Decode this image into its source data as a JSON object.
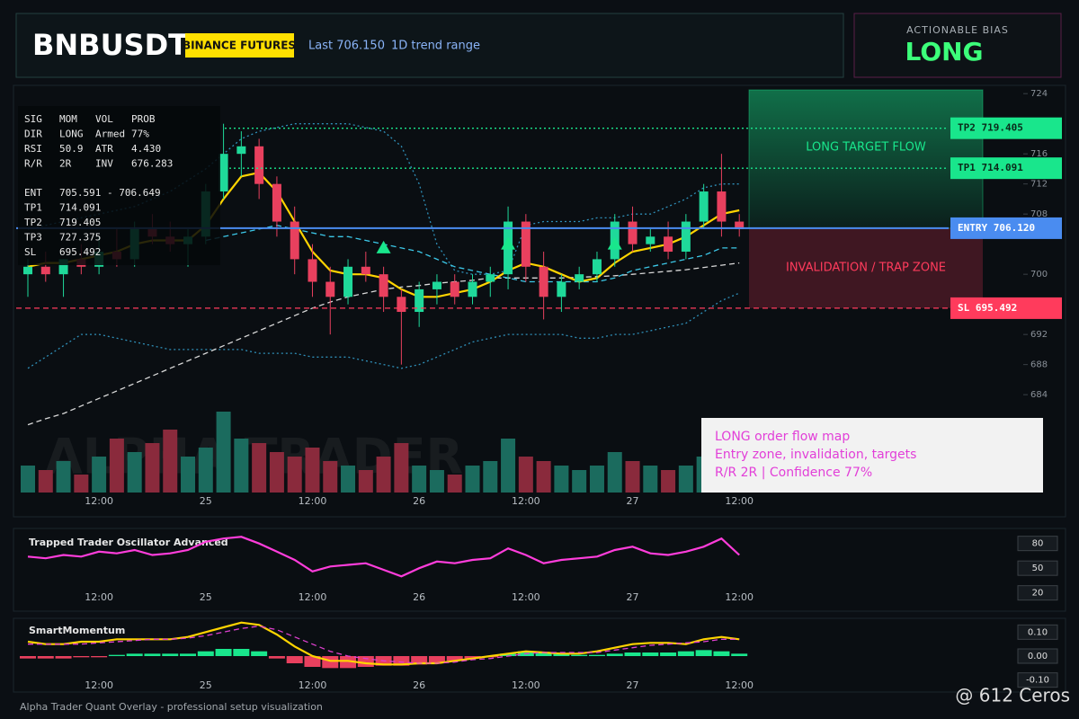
{
  "header": {
    "symbol": "BNBUSDT",
    "exchange": "BINANCE FUTURES",
    "last": "Last 706.150",
    "range": "1D trend range"
  },
  "bias": {
    "title": "ACTIONABLE BIAS",
    "value": "LONG"
  },
  "info_table": {
    "rows": [
      [
        "SIG",
        "MOM",
        "VOL",
        "PROB"
      ],
      [
        "DIR",
        "LONG",
        "Armed",
        "77%"
      ],
      [
        "RSI",
        "50.9",
        "ATR",
        "4.430"
      ],
      [
        "R/R",
        "2R",
        "INV",
        "676.283"
      ],
      [
        "ENT",
        "705.591 - 706.649"
      ],
      [
        "TP1",
        "714.091"
      ],
      [
        "TP2",
        "719.405"
      ],
      [
        "TP3",
        "727.375"
      ],
      [
        "SL",
        "695.492"
      ]
    ]
  },
  "annotation": {
    "lines": [
      "LONG order flow map",
      "Entry zone, invalidation, targets",
      "R/R 2R | Confidence 77%"
    ]
  },
  "watermark": "ALPHA TRADER",
  "footer": "Alpha Trader Quant Overlay - professional setup visualization",
  "credit": "@ 612 Ceros",
  "chart_data": [
    {
      "type": "candlestick",
      "categories": [
        null,
        null,
        null,
        null,
        "12:00",
        null,
        null,
        null,
        null,
        null,
        "25",
        null,
        null,
        null,
        null,
        null,
        "12:00",
        null,
        null,
        null,
        null,
        null,
        "26",
        null,
        null,
        null,
        null,
        null,
        "12:00",
        null,
        null,
        null,
        null,
        null,
        "27",
        null,
        null,
        null,
        null,
        null,
        "12:00"
      ],
      "open": [
        700,
        701,
        700,
        702,
        701,
        703,
        702,
        706,
        705,
        704,
        705,
        711,
        716,
        717,
        712,
        707,
        702,
        699,
        697,
        701,
        700,
        697,
        695,
        698,
        699,
        697,
        699,
        700,
        707,
        701,
        697,
        699,
        700,
        702,
        707,
        704,
        705,
        703,
        707,
        711,
        707
      ],
      "high": [
        702,
        703,
        702,
        704,
        705,
        706,
        707,
        708,
        707,
        706,
        712,
        720,
        719,
        718,
        713,
        709,
        704,
        701,
        702,
        703,
        701,
        698,
        699,
        700,
        700,
        700,
        701,
        709,
        708,
        703,
        700,
        701,
        703,
        708,
        709,
        706,
        707,
        708,
        712,
        716,
        708
      ],
      "low": [
        697,
        699,
        697,
        700,
        700,
        701,
        701,
        704,
        703,
        701,
        704,
        710,
        713,
        710,
        705,
        700,
        697,
        692,
        696,
        699,
        695,
        688,
        693,
        696,
        696,
        696,
        697,
        698,
        699,
        694,
        695,
        698,
        699,
        701,
        703,
        703,
        702,
        702,
        706,
        705,
        705
      ],
      "close": [
        701,
        700,
        702,
        701,
        703,
        702,
        706,
        705,
        704,
        705,
        711,
        716,
        717,
        712,
        707,
        702,
        699,
        697,
        701,
        700,
        697,
        695,
        698,
        699,
        697,
        699,
        700,
        707,
        701,
        697,
        699,
        700,
        702,
        707,
        704,
        705,
        703,
        707,
        711,
        707,
        706
      ],
      "volume": [
        30,
        25,
        35,
        20,
        40,
        60,
        45,
        55,
        70,
        40,
        50,
        90,
        60,
        55,
        45,
        40,
        50,
        35,
        30,
        25,
        40,
        55,
        30,
        25,
        20,
        30,
        35,
        60,
        40,
        35,
        30,
        25,
        30,
        45,
        35,
        30,
        25,
        30,
        40,
        35,
        20
      ],
      "up_color": "#1fd99a",
      "down_color": "#e8405e",
      "volume_up_color": "#1b6b5e",
      "volume_down_color": "#8a2a3c",
      "ylim": [
        671,
        724.5
      ],
      "yticks": [
        684,
        688,
        692,
        700,
        708,
        712,
        716,
        724
      ],
      "series": [
        {
          "color": "#2f8fb8",
          "style": "dotted",
          "values": [
            706,
            706.5,
            707,
            707.5,
            708,
            708.5,
            709,
            710,
            711,
            712.5,
            714,
            716,
            718,
            719,
            719.5,
            720,
            720,
            720,
            720,
            719.5,
            719,
            717,
            712,
            704,
            700.5,
            700,
            700,
            700.5,
            706.5,
            707,
            707,
            707,
            707.5,
            707.5,
            708,
            708,
            709,
            710,
            711.5,
            712,
            712
          ]
        },
        {
          "color": "#2f8fb8",
          "style": "dotted",
          "values": [
            687.5,
            689,
            690.5,
            692,
            692,
            691.5,
            691,
            690.5,
            690,
            690,
            690,
            690,
            690,
            689.5,
            689.5,
            689.5,
            689,
            689,
            689,
            688.5,
            688,
            687.5,
            688,
            689,
            690,
            691,
            691.5,
            692,
            692,
            692,
            692,
            691.5,
            691.5,
            692,
            692,
            692.5,
            693,
            693.5,
            695,
            696.5,
            697.5
          ]
        },
        {
          "color": "#d8d8d8",
          "style": "dashed",
          "values": [
            680,
            680.8,
            681.5,
            682.5,
            683.5,
            684.5,
            685.5,
            686.5,
            687.5,
            688.5,
            689.5,
            690.5,
            691.5,
            692.5,
            693.5,
            694.5,
            695.5,
            696.3,
            697,
            697.5,
            698,
            698.3,
            698.5,
            698.8,
            699,
            699.2,
            699.5,
            699.5,
            699.5,
            699.5,
            699.5,
            699.6,
            699.7,
            699.8,
            700,
            700.2,
            700.4,
            700.6,
            700.9,
            701.2,
            701.5
          ]
        },
        {
          "color": "#3cc8e8",
          "style": "dashed",
          "values": [
            null,
            null,
            null,
            null,
            null,
            null,
            null,
            null,
            null,
            null,
            704.5,
            705,
            705.5,
            706,
            706.5,
            706,
            705.5,
            705,
            705,
            704.5,
            704,
            703.5,
            703,
            702,
            701,
            700.5,
            700,
            699.5,
            699,
            699,
            699,
            699,
            699,
            699.5,
            700.5,
            701,
            701.5,
            702,
            702.5,
            703.5,
            703.5
          ]
        },
        {
          "color": "#ffd400",
          "style": "solid",
          "values": [
            701,
            701.5,
            701.5,
            702,
            702.5,
            703,
            704,
            704.5,
            704.5,
            704.5,
            706.5,
            710,
            713,
            713.5,
            711,
            707,
            703,
            700.5,
            700,
            700,
            699.5,
            698,
            697,
            697,
            697.5,
            698,
            699,
            700.5,
            701.5,
            701,
            700,
            699,
            699.5,
            701.5,
            703,
            703.5,
            704,
            705,
            706.5,
            708,
            708.5
          ]
        },
        {
          "color": "#19e68c",
          "style": "triangle",
          "values": [
            null,
            null,
            null,
            null,
            null,
            null,
            null,
            null,
            null,
            null,
            null,
            null,
            null,
            null,
            null,
            null,
            null,
            null,
            null,
            null,
            703.5,
            null,
            null,
            null,
            null,
            null,
            null,
            704,
            null,
            null,
            null,
            null,
            null,
            704,
            null,
            null,
            null,
            null,
            null,
            null,
            null
          ]
        }
      ],
      "levels": [
        {
          "value": 719.405,
          "label": "TP2 719.405",
          "color": "#19e68c",
          "style": "dotted"
        },
        {
          "value": 714.091,
          "label": "TP1 714.091",
          "color": "#19e68c",
          "style": "dotted"
        },
        {
          "value": 706.12,
          "label": "ENTRY 706.120",
          "color": "#4a8cf0",
          "style": "solid"
        },
        {
          "value": 695.492,
          "label": "SL 695.492",
          "color": "#ff3b5c",
          "style": "dashed"
        }
      ],
      "zones": [
        {
          "label": "LONG TARGET FLOW",
          "color": "#19e68c"
        },
        {
          "label": "INVALIDATION / TRAP ZONE",
          "color": "#ff3b5c"
        }
      ]
    },
    {
      "type": "line",
      "title": "Trapped Trader Oscillator Advanced",
      "ylim": [
        0,
        96
      ],
      "yticks": [
        20,
        50,
        80
      ],
      "series": [
        {
          "color": "#ff3ddb",
          "style": "solid",
          "values": [
            64,
            62,
            66,
            64,
            70,
            68,
            72,
            66,
            68,
            72,
            82,
            86,
            88,
            80,
            70,
            60,
            46,
            52,
            54,
            56,
            48,
            40,
            50,
            58,
            56,
            60,
            62,
            74,
            66,
            56,
            60,
            62,
            64,
            72,
            76,
            68,
            66,
            70,
            76,
            86,
            66
          ]
        }
      ]
    },
    {
      "type": "combo",
      "title": "SmartMomentum",
      "ylim": [
        -0.12,
        0.15
      ],
      "yticks": [
        {
          "value": -0.1,
          "label": "-0.10"
        },
        {
          "value": 0,
          "label": "0.00"
        },
        {
          "value": 0.1,
          "label": "0.10"
        }
      ],
      "bars": {
        "up_color": "#19e68c",
        "down_color": "#e8405e",
        "values": [
          -0.01,
          -0.01,
          -0.01,
          -0.005,
          -0.005,
          0.005,
          0.01,
          0.01,
          0.01,
          0.01,
          0.02,
          0.03,
          0.03,
          0.02,
          -0.01,
          -0.03,
          -0.045,
          -0.05,
          -0.05,
          -0.045,
          -0.04,
          -0.04,
          -0.035,
          -0.03,
          -0.02,
          -0.01,
          -0.005,
          0.01,
          0.02,
          0.015,
          0.01,
          0.005,
          0.005,
          0.01,
          0.015,
          0.015,
          0.015,
          0.02,
          0.025,
          0.02,
          0.01
        ]
      },
      "series": [
        {
          "color": "#ffd400",
          "style": "solid",
          "values": [
            0.06,
            0.05,
            0.05,
            0.06,
            0.06,
            0.07,
            0.07,
            0.07,
            0.07,
            0.08,
            0.1,
            0.12,
            0.14,
            0.13,
            0.09,
            0.04,
            0.0,
            -0.02,
            -0.02,
            -0.03,
            -0.035,
            -0.035,
            -0.03,
            -0.03,
            -0.02,
            -0.01,
            0.0,
            0.01,
            0.02,
            0.015,
            0.01,
            0.01,
            0.02,
            0.035,
            0.05,
            0.055,
            0.055,
            0.05,
            0.07,
            0.08,
            0.07
          ]
        },
        {
          "color": "#e040d0",
          "style": "dashed",
          "values": [
            0.05,
            0.05,
            0.05,
            0.05,
            0.055,
            0.06,
            0.065,
            0.07,
            0.07,
            0.075,
            0.085,
            0.1,
            0.115,
            0.125,
            0.11,
            0.08,
            0.05,
            0.02,
            0.0,
            -0.01,
            -0.02,
            -0.025,
            -0.03,
            -0.03,
            -0.025,
            -0.015,
            -0.01,
            0.0,
            0.01,
            0.015,
            0.015,
            0.015,
            0.015,
            0.025,
            0.035,
            0.045,
            0.05,
            0.055,
            0.06,
            0.07,
            0.07
          ]
        }
      ]
    }
  ]
}
